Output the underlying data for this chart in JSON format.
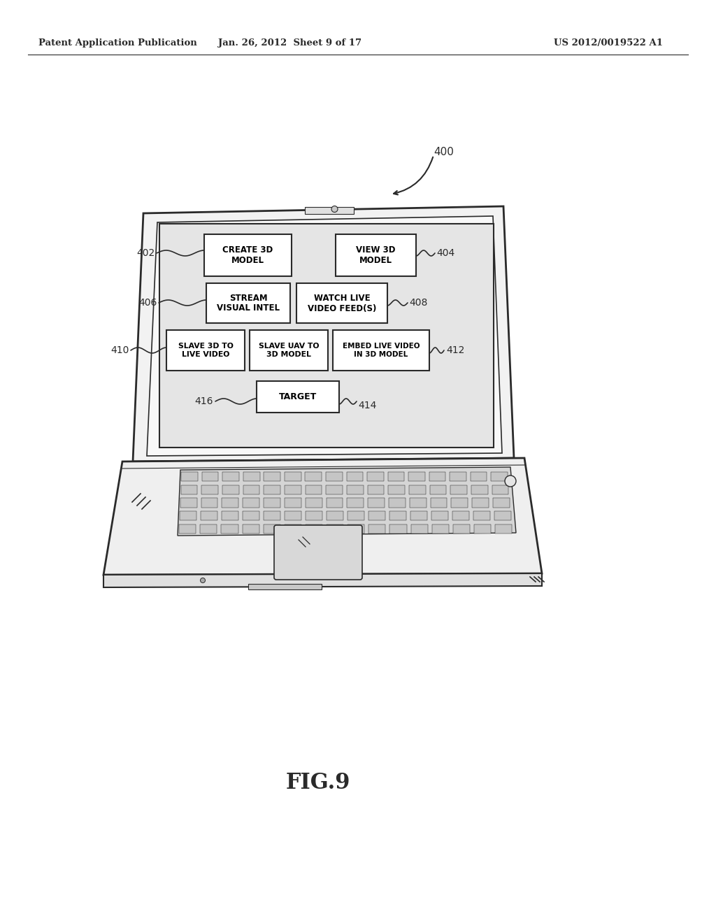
{
  "bg_color": "#ffffff",
  "line_color": "#2a2a2a",
  "header_left": "Patent Application Publication",
  "header_mid": "Jan. 26, 2012  Sheet 9 of 17",
  "header_right": "US 2012/0019522 A1",
  "fig_label": "FIG.9",
  "ref_400": "400",
  "ref_402": "402",
  "ref_404": "404",
  "ref_406": "406",
  "ref_408": "408",
  "ref_410": "410",
  "ref_412": "412",
  "ref_414": "414",
  "ref_416": "416",
  "box_create3d": "CREATE 3D\nMODEL",
  "box_view3d": "VIEW 3D\nMODEL",
  "box_stream": "STREAM\nVISUAL INTEL",
  "box_watch": "WATCH LIVE\nVIDEO FEED(S)",
  "box_slave3d": "SLAVE 3D TO\nLIVE VIDEO",
  "box_slaveuav": "SLAVE UAV TO\n3D MODEL",
  "box_embed": "EMBED LIVE VIDEO\nIN 3D MODEL",
  "box_target": "TARGET"
}
